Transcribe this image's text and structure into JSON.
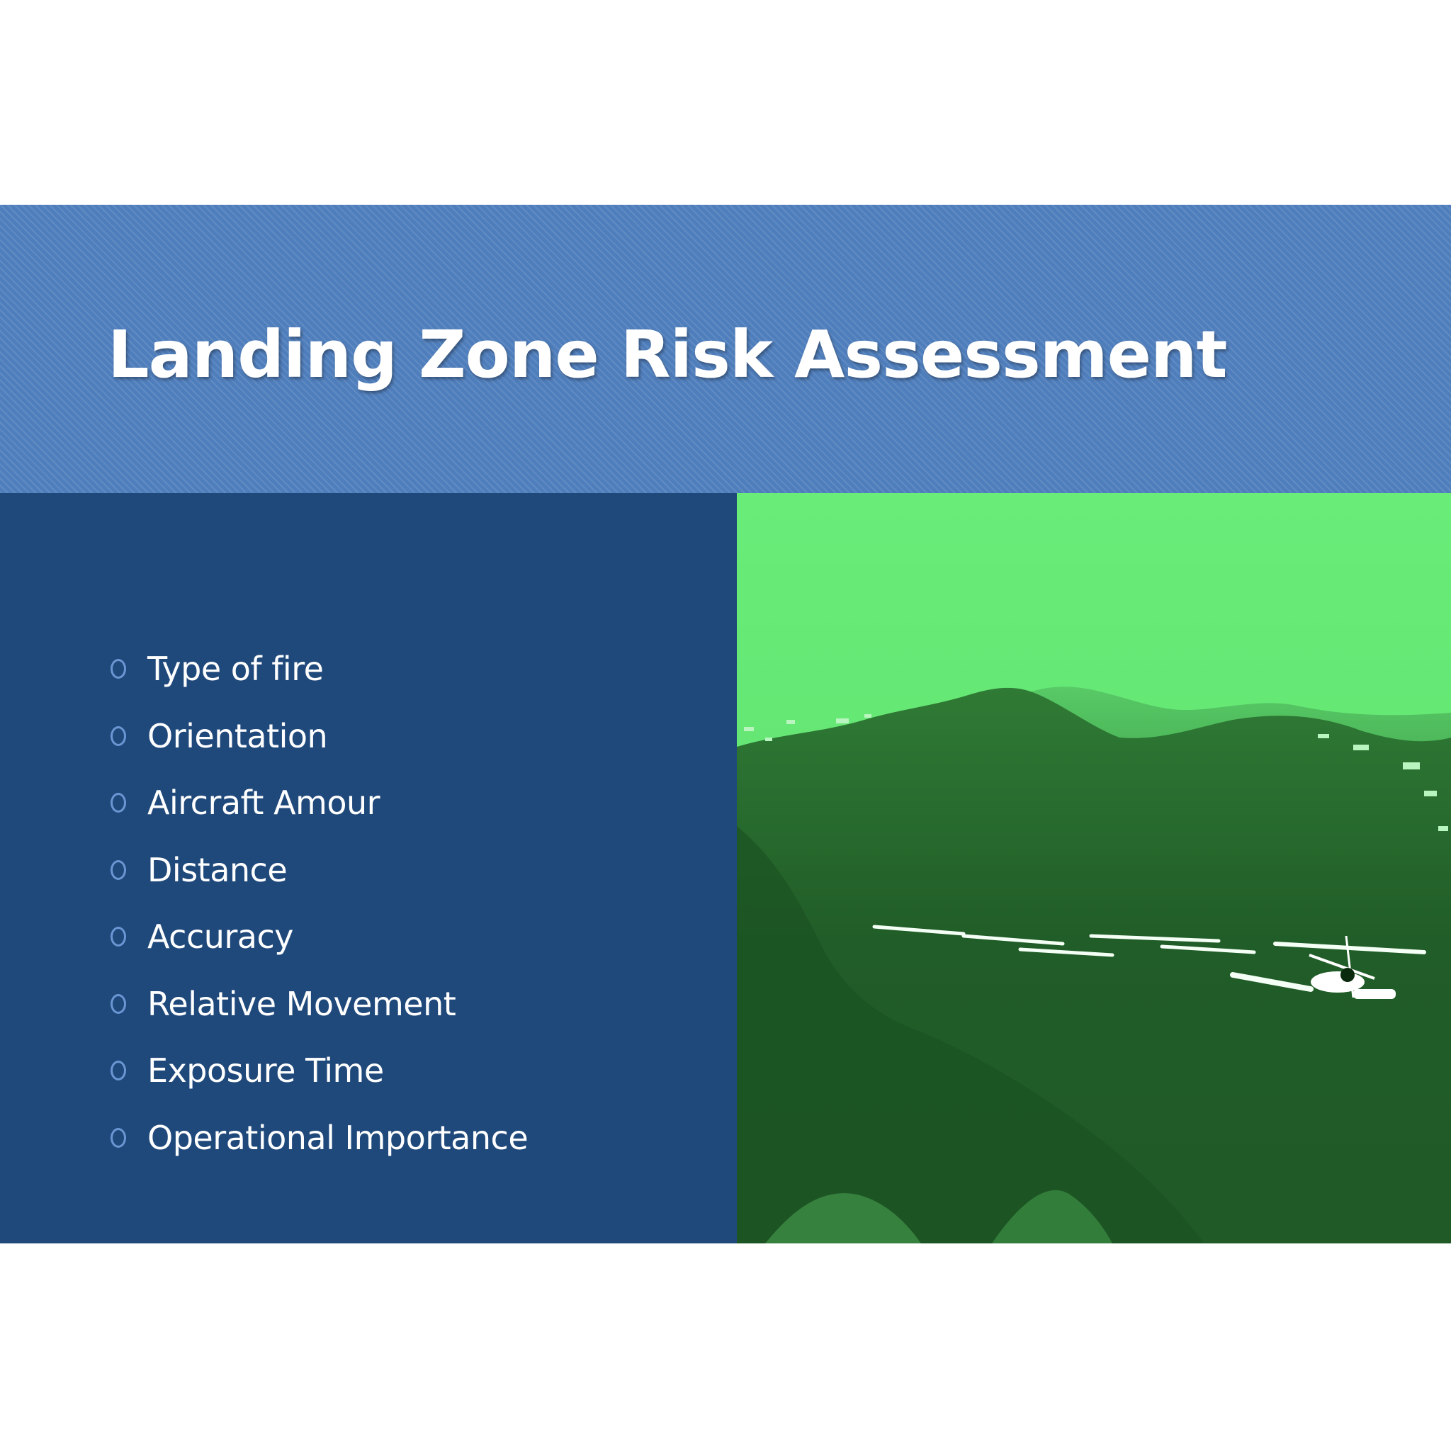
{
  "slide": {
    "title": "Landing Zone Risk Assessment",
    "bullets": [
      "Type of fire",
      "Orientation",
      "Aircraft Amour",
      "Distance",
      "Accuracy",
      "Relative Movement",
      "Exposure Time",
      "Operational Importance"
    ]
  },
  "colors": {
    "header_band": "#4f7ebc",
    "body_panel": "#20497b",
    "bullet_ring": "#6a97d4",
    "title_text": "#ffffff",
    "photo_sky": "#66e876",
    "photo_ground": "#1f5a27"
  },
  "image": {
    "icon": "night-vision-helicopter-photo"
  }
}
